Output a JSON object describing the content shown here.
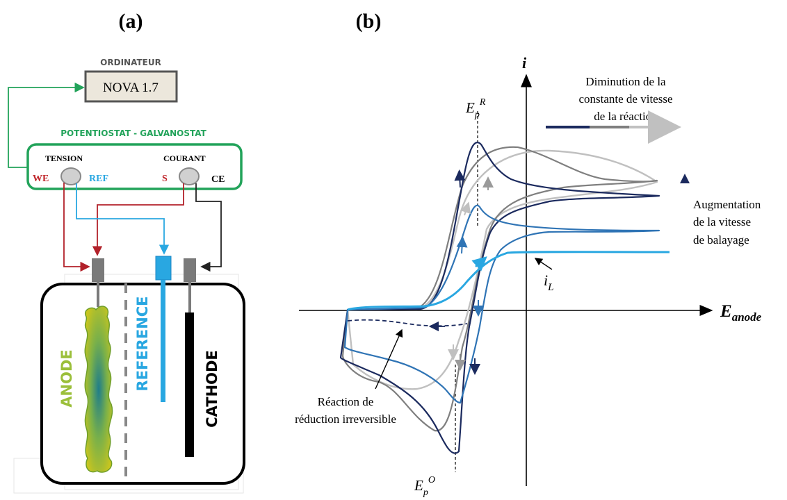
{
  "panel_a": {
    "label": "(a)",
    "computer_title": "ORDINATEUR",
    "software": "NOVA 1.7",
    "device_title": "POTENTIOSTAT - GALVANOSTAT",
    "tension": "TENSION",
    "courant": "COURANT",
    "we": "WE",
    "ref": "REF",
    "s": "S",
    "ce": "CE",
    "anode": "ANODE",
    "reference": "REFERENCE",
    "cathode": "CATHODE"
  },
  "panel_b": {
    "label": "(b)",
    "y_axis": "i",
    "x_axis_main": "E",
    "x_axis_sub": "anode",
    "ep_r_main": "E",
    "ep_r_sub": "p",
    "ep_r_sup": "R",
    "ep_o_main": "E",
    "ep_o_sub": "p",
    "ep_o_sup": "O",
    "il_main": "i",
    "il_sub": "L",
    "legend_rate_line1": "Diminution de la",
    "legend_rate_line2": "constante de vitesse",
    "legend_rate_line3": "de la réaction",
    "legend_scan_line1": "Augmentation",
    "legend_scan_line2": "de la vitesse",
    "legend_scan_line3": "de balayage",
    "annotation_line1": "Réaction de",
    "annotation_line2": "réduction irreversible"
  },
  "colors": {
    "dark_navy": "#1b2a5e",
    "medium_blue": "#2f74b5",
    "light_blue": "#29a7e1",
    "dark_gray": "#7f7f7f",
    "light_gray": "#c0c0c0",
    "green": "#22a35a",
    "red": "#c0252a",
    "anode_green": "#9bbf3a"
  }
}
